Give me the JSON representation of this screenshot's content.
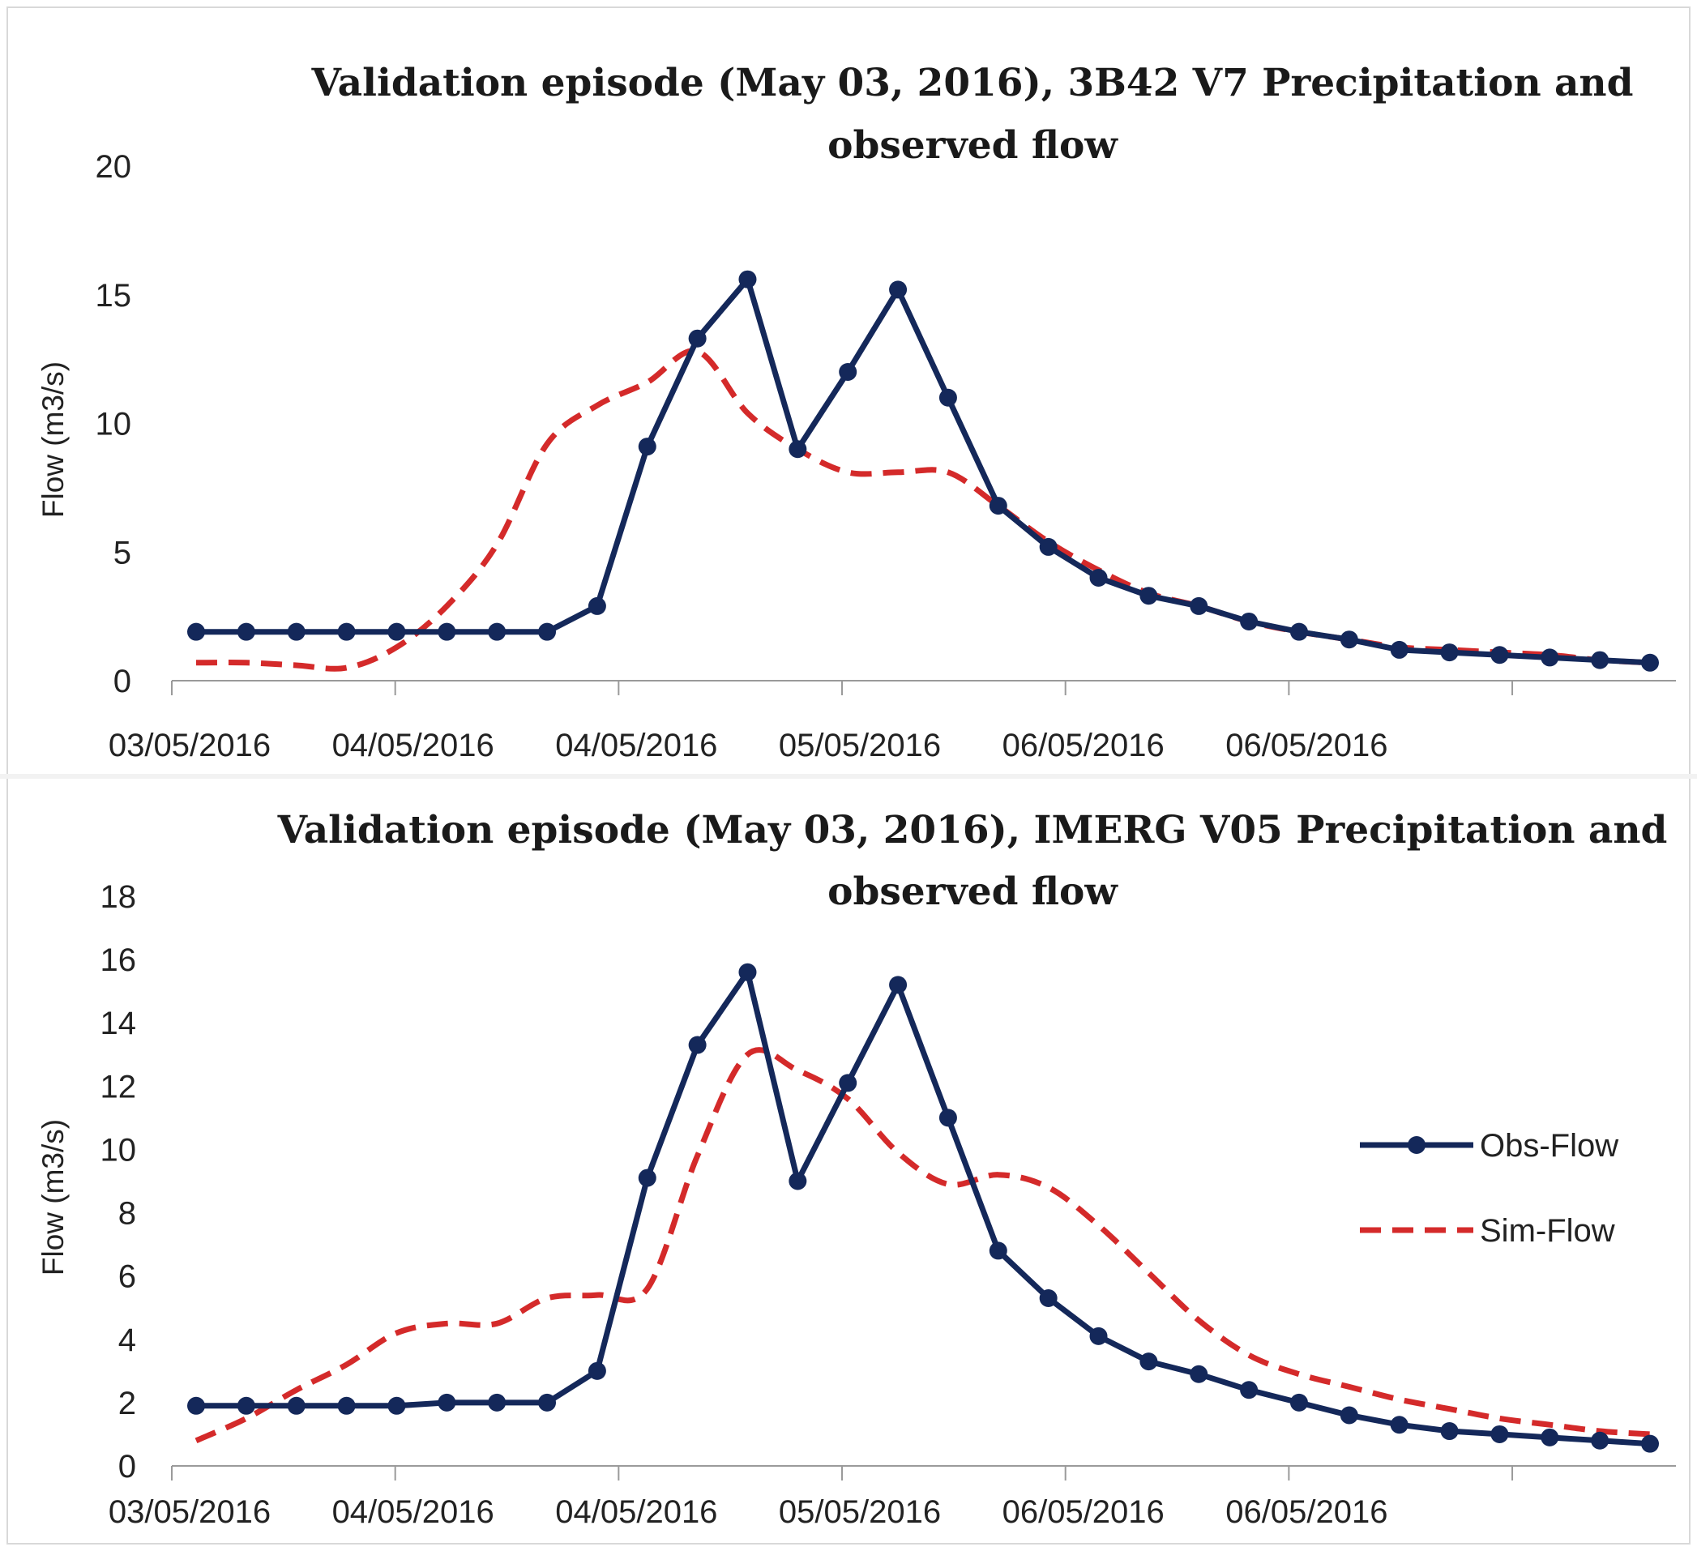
{
  "chart_data": [
    {
      "type": "line",
      "title_lines": [
        "Validation episode (May 03, 2016), 3B42 V7 Precipitation and",
        "observed flow"
      ],
      "xlabel": "",
      "ylabel": "Flow (m3/s)",
      "ylim": [
        0,
        20
      ],
      "y_ticks": [
        0,
        5,
        10,
        15,
        20
      ],
      "x_tick_labels": [
        "03/05/2016",
        "04/05/2016",
        "04/05/2016",
        "05/05/2016",
        "06/05/2016",
        "06/05/2016"
      ],
      "n_points": 30,
      "grid": false,
      "colors": {
        "obs": "#14285a",
        "sim": "#d42a2a"
      },
      "series": [
        {
          "name": "Obs-Flow",
          "style": "solid-markers",
          "values": [
            1.9,
            1.9,
            1.9,
            1.9,
            1.9,
            1.9,
            1.9,
            1.9,
            2.9,
            9.1,
            13.3,
            15.6,
            9.0,
            12.0,
            15.2,
            11.0,
            6.8,
            5.2,
            4.0,
            3.3,
            2.9,
            2.3,
            1.9,
            1.6,
            1.2,
            1.1,
            1.0,
            0.9,
            0.8,
            0.7
          ]
        },
        {
          "name": "Sim-Flow",
          "style": "dashed",
          "values": [
            0.7,
            0.7,
            0.6,
            0.5,
            1.3,
            2.9,
            5.3,
            9.2,
            10.7,
            11.6,
            12.8,
            10.4,
            9.0,
            8.1,
            8.1,
            8.1,
            6.8,
            5.4,
            4.3,
            3.4,
            2.9,
            2.3,
            1.9,
            1.6,
            1.3,
            1.2,
            1.1,
            1.0,
            0.8,
            0.7
          ]
        }
      ]
    },
    {
      "type": "line",
      "title_lines": [
        "Validation episode (May 03, 2016), IMERG V05 Precipitation and",
        "observed flow"
      ],
      "xlabel": "",
      "ylabel": "Flow (m3/s)",
      "ylim": [
        0,
        18
      ],
      "y_ticks": [
        0,
        2,
        4,
        6,
        8,
        10,
        12,
        14,
        16,
        18
      ],
      "x_tick_labels": [
        "03/05/2016",
        "04/05/2016",
        "04/05/2016",
        "05/05/2016",
        "06/05/2016",
        "06/05/2016"
      ],
      "n_points": 30,
      "grid": false,
      "legend": {
        "position": "right",
        "entries": [
          "Obs-Flow",
          "Sim-Flow"
        ]
      },
      "colors": {
        "obs": "#14285a",
        "sim": "#d42a2a"
      },
      "series": [
        {
          "name": "Obs-Flow",
          "style": "solid-markers",
          "values": [
            1.9,
            1.9,
            1.9,
            1.9,
            1.9,
            2.0,
            2.0,
            2.0,
            3.0,
            9.1,
            13.3,
            15.6,
            9.0,
            12.1,
            15.2,
            11.0,
            6.8,
            5.3,
            4.1,
            3.3,
            2.9,
            2.4,
            2.0,
            1.6,
            1.3,
            1.1,
            1.0,
            0.9,
            0.8,
            0.7
          ]
        },
        {
          "name": "Sim-Flow",
          "style": "dashed",
          "values": [
            0.8,
            1.5,
            2.4,
            3.2,
            4.2,
            4.5,
            4.5,
            5.3,
            5.4,
            5.6,
            9.8,
            13.0,
            12.5,
            11.6,
            9.9,
            8.9,
            9.2,
            8.8,
            7.6,
            6.1,
            4.6,
            3.5,
            2.9,
            2.5,
            2.1,
            1.8,
            1.5,
            1.3,
            1.1,
            1.0
          ]
        }
      ]
    }
  ]
}
